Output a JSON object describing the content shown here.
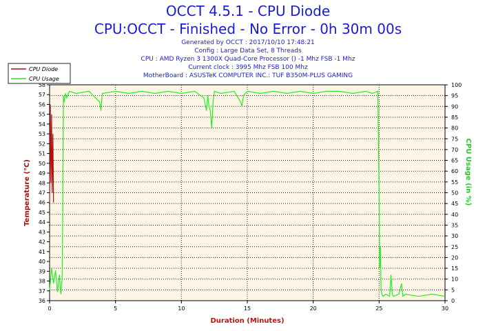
{
  "header": {
    "title_line1": "OCCT 4.5.1 - CPU Diode",
    "title_line2": "CPU:OCCT - Finished - No Error - 0h 30m 00s",
    "generated": "Generated by OCCT : 2017/10/10 17:48:21",
    "config": "Config : Large Data Set, 8 Threads",
    "cpu": "CPU : AMD Ryzen 3 1300X Quad-Core Processor () -1 Mhz FSB -1 Mhz",
    "clock": "Current clock : 3995 Mhz FSB 100 Mhz",
    "motherboard": "MotherBoard : ASUSTeK COMPUTER INC.: TUF B350M-PLUS GAMING"
  },
  "colors": {
    "title": "#1a1ad8",
    "cpu_diode": "#b01010",
    "cpu_usage": "#22ee22",
    "plot_bg": "#fdf6e6",
    "axis_label_x": "#c01010",
    "axis_label_left": "#a01010",
    "axis_label_right": "#22cc22"
  },
  "chart_data": {
    "type": "line",
    "xlabel": "Duration (Minutes)",
    "ylabel_left": "Temperature (°C)",
    "ylabel_right": "CPU Usage (in %)",
    "xlim": [
      0,
      30
    ],
    "x_ticks": [
      0,
      5,
      10,
      15,
      20,
      25,
      30
    ],
    "ylim_left": [
      36,
      58
    ],
    "y_ticks_left": [
      36,
      37,
      38,
      39,
      40,
      41,
      42,
      43,
      44,
      45,
      46,
      47,
      48,
      49,
      50,
      51,
      52,
      53,
      54,
      55,
      56,
      57,
      58
    ],
    "ylim_right": [
      0,
      100
    ],
    "y_ticks_right": [
      0,
      5,
      10,
      15,
      20,
      25,
      30,
      35,
      40,
      45,
      50,
      55,
      60,
      65,
      70,
      75,
      80,
      85,
      90,
      95,
      100
    ],
    "grid": "dotted",
    "legend_position": "top-left",
    "series": [
      {
        "name": "CPU Diode",
        "axis": "left",
        "color": "#b01010",
        "x": [
          0,
          0.05,
          0.1,
          0.15,
          0.2,
          0.25,
          0.3
        ],
        "y": [
          46,
          56,
          48,
          55,
          47,
          53,
          46
        ]
      },
      {
        "name": "CPU Usage",
        "axis": "right",
        "color": "#22ee22",
        "x": [
          0,
          0.15,
          0.3,
          0.45,
          0.6,
          0.75,
          0.85,
          0.95,
          1.0,
          1.05,
          1.1,
          1.2,
          1.3,
          1.5,
          2.0,
          3.0,
          3.8,
          3.9,
          4.0,
          5.0,
          6.0,
          7.0,
          8.0,
          9.0,
          10.0,
          11.0,
          11.7,
          11.9,
          12.0,
          12.1,
          12.2,
          12.3,
          12.4,
          12.5,
          13.0,
          14.0,
          14.5,
          14.6,
          14.7,
          15.0,
          16.0,
          17.0,
          18.0,
          19.0,
          20.0,
          21.0,
          22.0,
          23.0,
          24.0,
          24.5,
          24.9,
          25.0,
          25.05,
          25.1,
          25.15,
          25.2,
          25.3,
          25.5,
          25.8,
          25.9,
          26.0,
          26.1,
          26.5,
          26.7,
          26.8,
          27.0,
          28.0,
          29.0,
          30.0
        ],
        "y": [
          5,
          15,
          8,
          14,
          4,
          12,
          3,
          10,
          40,
          95,
          92,
          96,
          94,
          97,
          96,
          97,
          92,
          88,
          96,
          97,
          96,
          97,
          96,
          97,
          96,
          97,
          94,
          88,
          95,
          90,
          88,
          80,
          92,
          97,
          96,
          97,
          92,
          90,
          95,
          97,
          96,
          97,
          96,
          97,
          96,
          97,
          97,
          96,
          97,
          96,
          97,
          50,
          15,
          25,
          5,
          3,
          2,
          3,
          2,
          12,
          3,
          2,
          3,
          8,
          2,
          3,
          2,
          3,
          2
        ]
      }
    ]
  }
}
